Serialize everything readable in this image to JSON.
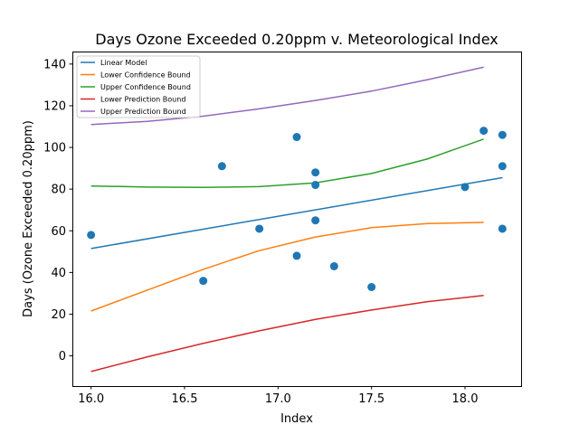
{
  "chart_data": {
    "type": "scatter",
    "title": "Days Ozone Exceeded 0.20ppm v. Meteorological Index",
    "xlabel": "Index",
    "ylabel": "Days (Ozone Exceeded 0.20ppm)",
    "xlim": [
      15.9,
      18.3
    ],
    "ylim": [
      -14.5,
      146
    ],
    "xticks": [
      16.0,
      16.5,
      17.0,
      17.5,
      18.0
    ],
    "xtick_labels": [
      "16.0",
      "16.5",
      "17.0",
      "17.5",
      "18.0"
    ],
    "yticks": [
      0,
      20,
      40,
      60,
      80,
      100,
      120,
      140
    ],
    "ytick_labels": [
      "0",
      "20",
      "40",
      "60",
      "80",
      "100",
      "120",
      "140"
    ],
    "grid": false,
    "legend_position": "top-left",
    "points": {
      "color": "#1f77b4",
      "x": [
        16.0,
        16.6,
        16.7,
        16.9,
        17.1,
        17.1,
        17.2,
        17.2,
        17.2,
        17.3,
        17.5,
        18.0,
        18.1,
        18.2,
        18.2,
        18.2
      ],
      "y": [
        58,
        36,
        91,
        61,
        105,
        48,
        88,
        82,
        65,
        43,
        33,
        81,
        108,
        106,
        91,
        61
      ]
    },
    "series": [
      {
        "name": "Linear Model",
        "color": "#1f77b4",
        "x": [
          16.0,
          18.2
        ],
        "y": [
          51.5,
          85.5
        ]
      },
      {
        "name": "Lower Confidence Bound",
        "color": "#ff7f0e",
        "x": [
          16.0,
          16.3,
          16.6,
          16.9,
          17.2,
          17.5,
          17.8,
          18.1
        ],
        "y": [
          21.5,
          31.5,
          41.5,
          50.5,
          57.0,
          61.5,
          63.5,
          64.0
        ]
      },
      {
        "name": "Upper Confidence Bound",
        "color": "#2ca02c",
        "x": [
          16.0,
          16.3,
          16.6,
          16.9,
          17.2,
          17.5,
          17.8,
          18.1
        ],
        "y": [
          81.5,
          81.0,
          80.8,
          81.2,
          83.0,
          87.5,
          94.5,
          104.0
        ]
      },
      {
        "name": "Lower Prediction Bound",
        "color": "#d62728",
        "x": [
          16.0,
          16.3,
          16.6,
          16.9,
          17.2,
          17.5,
          17.8,
          18.1
        ],
        "y": [
          -7.5,
          -0.5,
          6.0,
          12.0,
          17.5,
          22.0,
          26.0,
          29.0
        ]
      },
      {
        "name": "Upper Prediction Bound",
        "color": "#9467bd",
        "x": [
          16.0,
          16.3,
          16.6,
          16.9,
          17.2,
          17.5,
          17.8,
          18.1
        ],
        "y": [
          111.0,
          112.5,
          115.0,
          118.5,
          122.5,
          127.0,
          132.5,
          138.5
        ]
      }
    ]
  }
}
